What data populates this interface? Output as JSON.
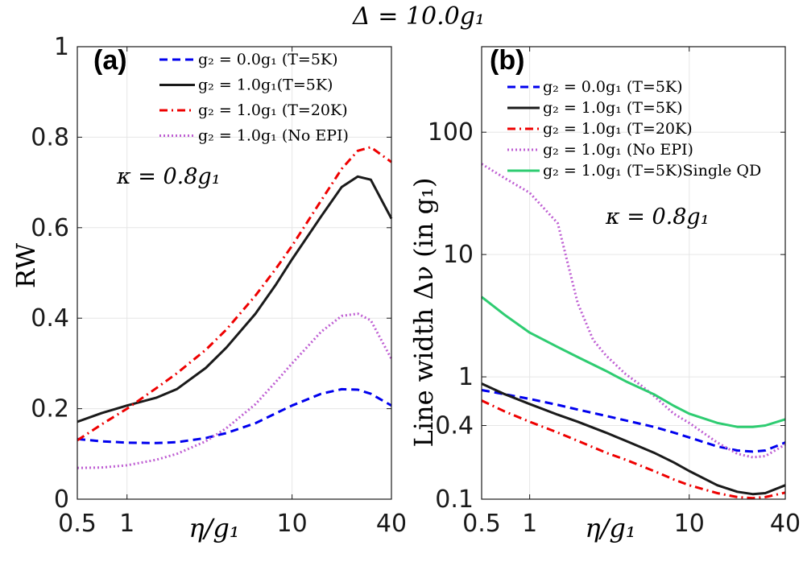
{
  "figure": {
    "title": "Δ = 10.0g₁",
    "colors": {
      "blue": "#0000ee",
      "black": "#1a1a1a",
      "red": "#ee0000",
      "purple": "#bf5fd3",
      "green": "#2ecc71"
    }
  },
  "chart_data": [
    {
      "type": "line",
      "panel": "(a)",
      "xscale": "log",
      "xlim": [
        0.5,
        40
      ],
      "xticks": [
        0.5,
        1,
        10,
        40
      ],
      "xtick_labels": [
        "0.5",
        "1",
        "10",
        "40"
      ],
      "ylim": [
        0,
        1
      ],
      "yticks": [
        0,
        0.2,
        0.4,
        0.6,
        0.8,
        1
      ],
      "ytick_labels": [
        "0",
        "0.2",
        "0.4",
        "0.6",
        "0.8",
        "1"
      ],
      "xlabel": "η/g₁",
      "ylabel": "RW",
      "annotation": "κ = 0.8g₁",
      "legend_position": "top-right",
      "series": [
        {
          "name": "g₂ = 0.0g₁ (T=5K)",
          "color": "#0000ee",
          "dash": "dashed",
          "x": [
            0.5,
            0.7,
            1,
            1.5,
            2,
            3,
            4,
            6,
            8,
            10,
            15,
            20,
            25,
            30,
            40
          ],
          "y": [
            0.133,
            0.128,
            0.125,
            0.124,
            0.126,
            0.135,
            0.146,
            0.168,
            0.19,
            0.207,
            0.233,
            0.243,
            0.242,
            0.233,
            0.207
          ]
        },
        {
          "name": "g₂ = 1.0g₁(T=5K)",
          "color": "#1a1a1a",
          "dash": "solid",
          "x": [
            0.5,
            0.7,
            1,
            1.5,
            2,
            3,
            4,
            6,
            8,
            10,
            15,
            20,
            25,
            30,
            40
          ],
          "y": [
            0.171,
            0.19,
            0.207,
            0.224,
            0.243,
            0.29,
            0.335,
            0.41,
            0.475,
            0.53,
            0.625,
            0.69,
            0.713,
            0.706,
            0.62
          ]
        },
        {
          "name": "g₂ = 1.0g₁ (T=20K)",
          "color": "#ee0000",
          "dash": "dashdot",
          "x": [
            0.5,
            0.7,
            1,
            1.5,
            2,
            3,
            4,
            6,
            8,
            10,
            15,
            20,
            25,
            30,
            40
          ],
          "y": [
            0.13,
            0.165,
            0.2,
            0.245,
            0.278,
            0.33,
            0.375,
            0.45,
            0.51,
            0.56,
            0.66,
            0.73,
            0.77,
            0.778,
            0.745
          ]
        },
        {
          "name": "g₂ = 1.0g₁ (No EPI)",
          "color": "#bf5fd3",
          "dash": "dotted",
          "x": [
            0.5,
            0.7,
            1,
            1.5,
            2,
            3,
            4,
            6,
            8,
            10,
            15,
            20,
            25,
            30,
            40
          ],
          "y": [
            0.069,
            0.07,
            0.075,
            0.087,
            0.1,
            0.128,
            0.157,
            0.21,
            0.26,
            0.3,
            0.37,
            0.405,
            0.41,
            0.395,
            0.31
          ]
        }
      ]
    },
    {
      "type": "line",
      "panel": "(b)",
      "xscale": "log",
      "yscale": "log",
      "xlim": [
        0.5,
        40
      ],
      "xticks": [
        0.5,
        1,
        10,
        40
      ],
      "xtick_labels": [
        "0.5",
        "1",
        "10",
        "40"
      ],
      "ylim": [
        0.1,
        500
      ],
      "yticks": [
        0.1,
        0.4,
        1,
        10,
        100
      ],
      "ytick_labels": [
        "0.1",
        "0.4",
        "1",
        "10",
        "100"
      ],
      "xlabel": "η/g₁",
      "ylabel": "Line width Δν (in g₁)",
      "annotation": "κ = 0.8g₁",
      "legend_position": "top-right",
      "series": [
        {
          "name": "g₂ = 0.0g₁ (T=5K)",
          "color": "#0000ee",
          "dash": "dashed",
          "x": [
            0.5,
            0.7,
            1,
            1.5,
            2,
            3,
            4,
            6,
            8,
            10,
            15,
            20,
            25,
            30,
            40
          ],
          "y": [
            0.78,
            0.72,
            0.66,
            0.59,
            0.54,
            0.48,
            0.44,
            0.39,
            0.35,
            0.32,
            0.27,
            0.25,
            0.245,
            0.25,
            0.29
          ]
        },
        {
          "name": "g₂ = 1.0g₁ (T=5K)",
          "color": "#1a1a1a",
          "dash": "solid",
          "x": [
            0.5,
            0.7,
            1,
            1.5,
            2,
            3,
            4,
            6,
            8,
            10,
            15,
            20,
            25,
            30,
            40
          ],
          "y": [
            0.88,
            0.72,
            0.6,
            0.49,
            0.43,
            0.35,
            0.3,
            0.24,
            0.2,
            0.17,
            0.13,
            0.115,
            0.11,
            0.112,
            0.13
          ]
        },
        {
          "name": "g₂ = 1.0g₁ (T=20K)",
          "color": "#ee0000",
          "dash": "dashdot",
          "x": [
            0.5,
            0.7,
            1,
            1.5,
            2,
            3,
            4,
            6,
            8,
            10,
            15,
            20,
            25,
            30,
            40
          ],
          "y": [
            0.64,
            0.52,
            0.43,
            0.35,
            0.3,
            0.24,
            0.21,
            0.17,
            0.145,
            0.13,
            0.112,
            0.104,
            0.102,
            0.104,
            0.113
          ]
        },
        {
          "name": "g₂ = 1.0g₁ (No EPI)",
          "color": "#bf5fd3",
          "dash": "dotted",
          "x": [
            0.5,
            0.7,
            1,
            1.5,
            2,
            2.5,
            3,
            4,
            5,
            6,
            8,
            10,
            15,
            20,
            25,
            30,
            40
          ],
          "y": [
            55,
            42,
            32,
            18,
            4.0,
            2.0,
            1.5,
            1.05,
            0.85,
            0.7,
            0.5,
            0.42,
            0.29,
            0.235,
            0.22,
            0.225,
            0.28
          ]
        },
        {
          "name": "g₂ = 1.0g₁ (T=5K)Single QD",
          "color": "#2ecc71",
          "dash": "solid",
          "x": [
            0.5,
            0.7,
            1,
            1.5,
            2,
            3,
            4,
            6,
            8,
            10,
            15,
            20,
            25,
            30,
            40
          ],
          "y": [
            4.5,
            3.2,
            2.3,
            1.75,
            1.45,
            1.12,
            0.92,
            0.72,
            0.58,
            0.5,
            0.42,
            0.39,
            0.39,
            0.4,
            0.45
          ]
        }
      ]
    }
  ]
}
